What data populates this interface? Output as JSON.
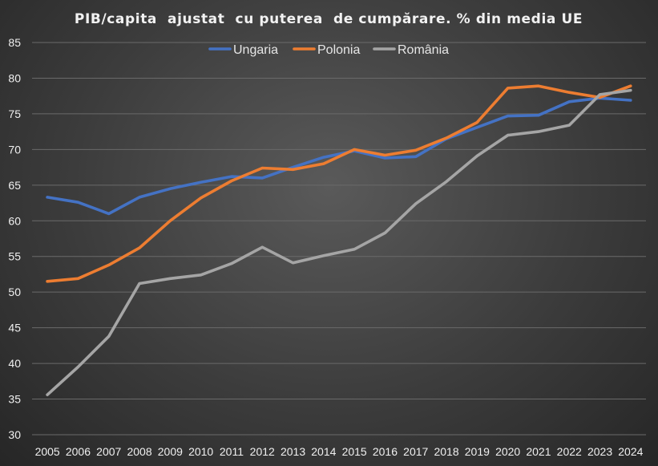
{
  "chart_data": {
    "type": "line",
    "title": "PIB/capita  ajustat  cu puterea  de cumpărare. % din media UE",
    "xlabel": "",
    "ylabel": "",
    "x": [
      "2005",
      "2006",
      "2007",
      "2008",
      "2009",
      "2010",
      "2011",
      "2012",
      "2013",
      "2014",
      "2015",
      "2016",
      "2017",
      "2018",
      "2019",
      "2020",
      "2021",
      "2022",
      "2023",
      "2024"
    ],
    "ylim": [
      30,
      85
    ],
    "yticks": [
      "30",
      "35",
      "40",
      "45",
      "50",
      "55",
      "60",
      "65",
      "70",
      "75",
      "80",
      "85"
    ],
    "grid": true,
    "legend_position": "top-center",
    "series": [
      {
        "name": "Ungaria",
        "color": "#4472c4",
        "values": [
          63.3,
          62.6,
          61.0,
          63.3,
          64.5,
          65.4,
          66.2,
          66.0,
          67.5,
          68.9,
          69.8,
          68.8,
          69.0,
          71.5,
          73.1,
          74.7,
          74.8,
          76.7,
          77.2,
          76.9
        ]
      },
      {
        "name": "Polonia",
        "color": "#ed7d31",
        "values": [
          51.5,
          51.9,
          53.8,
          56.2,
          60.0,
          63.2,
          65.6,
          67.4,
          67.2,
          68.0,
          70.0,
          69.2,
          69.9,
          71.6,
          73.8,
          78.6,
          78.9,
          78.0,
          77.3,
          78.9
        ]
      },
      {
        "name": "România",
        "color": "#a5a5a5",
        "values": [
          35.6,
          39.5,
          43.8,
          51.2,
          51.9,
          52.4,
          54.0,
          56.3,
          54.1,
          55.1,
          56.0,
          58.3,
          62.4,
          65.5,
          69.1,
          72.0,
          72.5,
          73.4,
          77.7,
          78.3
        ]
      }
    ]
  }
}
